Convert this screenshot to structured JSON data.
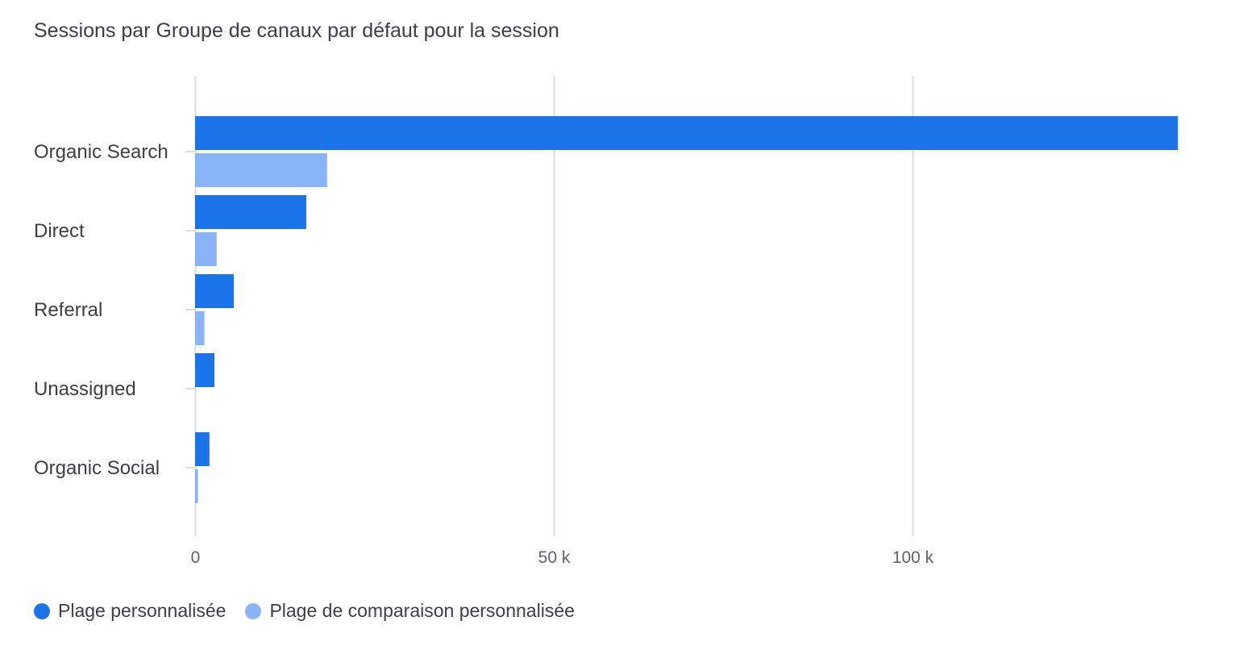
{
  "chart_data": {
    "type": "bar",
    "orientation": "horizontal",
    "title": "Sessions par Groupe de canaux par défaut pour la session",
    "categories": [
      "Organic Search",
      "Direct",
      "Referral",
      "Unassigned",
      "Organic Social"
    ],
    "series": [
      {
        "name": "Plage personnalisée",
        "color": "#1a73e8",
        "values": [
          137000,
          15500,
          5400,
          2700,
          2000
        ]
      },
      {
        "name": "Plage de comparaison personnalisée",
        "color": "#8ab4f8",
        "values": [
          18400,
          3000,
          1300,
          0,
          400
        ]
      }
    ],
    "x_ticks": [
      {
        "value": 0,
        "label": "0"
      },
      {
        "value": 50000,
        "label": "50 k"
      },
      {
        "value": 100000,
        "label": "100 k"
      }
    ],
    "xlim": [
      0,
      150000
    ],
    "xlabel": "",
    "ylabel": "",
    "grid": true,
    "legend_position": "bottom-left"
  }
}
